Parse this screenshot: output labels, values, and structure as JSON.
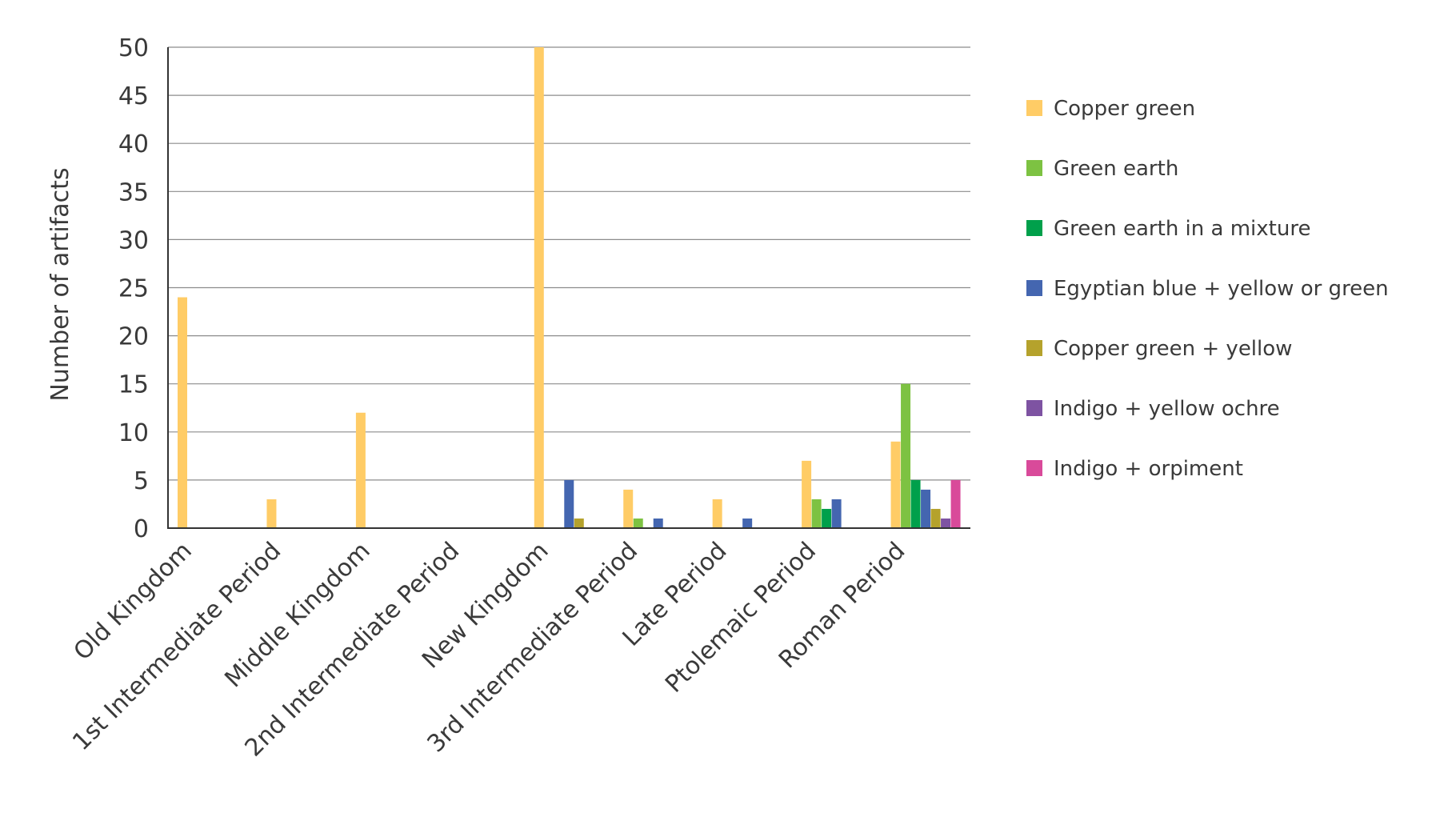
{
  "chart_data": {
    "type": "bar",
    "title": "",
    "xlabel": "",
    "ylabel": "Number of artifacts",
    "ylim": [
      0,
      50
    ],
    "yticks": [
      0,
      5,
      10,
      15,
      20,
      25,
      30,
      35,
      40,
      45,
      50
    ],
    "grid": true,
    "legend_position": "right",
    "categories": [
      "Old Kingdom",
      "1st Intermediate Period",
      "Middle Kingdom",
      "2nd Intermediate Period",
      "New Kingdom",
      "3rd Intermediate Period",
      "Late Period",
      "Ptolemaic Period",
      "Roman Period"
    ],
    "series": [
      {
        "name": "Copper green",
        "color": "#FFCC66",
        "values": [
          24,
          3,
          12,
          0,
          50,
          4,
          3,
          7,
          9
        ]
      },
      {
        "name": "Green earth",
        "color": "#7DC242",
        "values": [
          0,
          0,
          0,
          0,
          0,
          1,
          0,
          3,
          15
        ]
      },
      {
        "name": "Green earth in a mixture",
        "color": "#00A04B",
        "values": [
          0,
          0,
          0,
          0,
          0,
          0,
          0,
          2,
          5
        ]
      },
      {
        "name": "Egyptian blue + yellow or green",
        "color": "#4466B0",
        "values": [
          0,
          0,
          0,
          0,
          5,
          1,
          1,
          3,
          4
        ]
      },
      {
        "name": "Copper green + yellow",
        "color": "#B5A22C",
        "values": [
          0,
          0,
          0,
          0,
          1,
          0,
          0,
          0,
          2
        ]
      },
      {
        "name": "Indigo + yellow ochre",
        "color": "#7E53A2",
        "values": [
          0,
          0,
          0,
          0,
          0,
          0,
          0,
          0,
          1
        ]
      },
      {
        "name": "Indigo + orpiment",
        "color": "#D94A9A",
        "values": [
          0,
          0,
          0,
          0,
          0,
          0,
          0,
          0,
          5
        ]
      }
    ]
  }
}
